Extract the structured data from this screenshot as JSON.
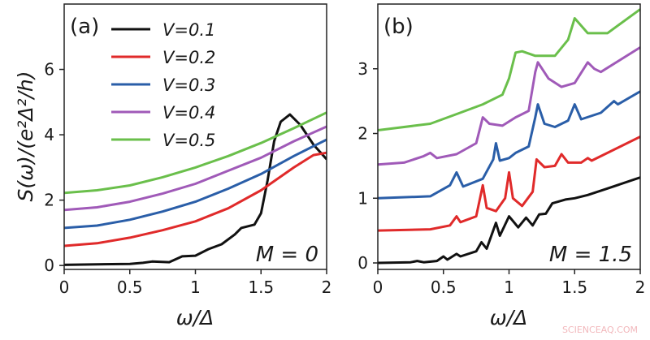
{
  "chart_data": [
    {
      "type": "line",
      "panel_label": "(a)",
      "annotation": "M = 0",
      "xlabel": "ω/Δ",
      "ylabel": "S(ω)/(e²Δ²/h)",
      "xlim": [
        0,
        2
      ],
      "ylim": [
        -0.12,
        8
      ],
      "xticks": [
        "0",
        "0.5",
        "1",
        "1.5",
        "2"
      ],
      "xtick_values": [
        0,
        0.5,
        1,
        1.5,
        2
      ],
      "yticks": [
        "0",
        "2",
        "4",
        "6"
      ],
      "ytick_values": [
        0,
        2,
        4,
        6
      ],
      "grid": false,
      "legend": "top-left",
      "series": [
        {
          "name": "V=0.1",
          "color": "#111111",
          "x": [
            0,
            0.5,
            0.6,
            0.67,
            0.8,
            0.9,
            1.0,
            1.1,
            1.2,
            1.3,
            1.35,
            1.45,
            1.5,
            1.55,
            1.6,
            1.65,
            1.72,
            1.8,
            1.9,
            2.0
          ],
          "y": [
            0.02,
            0.05,
            0.08,
            0.12,
            0.1,
            0.28,
            0.3,
            0.5,
            0.65,
            0.95,
            1.15,
            1.25,
            1.6,
            2.6,
            3.8,
            4.4,
            4.62,
            4.3,
            3.7,
            3.25
          ]
        },
        {
          "name": "V=0.2",
          "color": "#e02a2a",
          "x": [
            0,
            0.25,
            0.5,
            0.75,
            1.0,
            1.25,
            1.5,
            1.75,
            1.9,
            2.0
          ],
          "y": [
            0.6,
            0.68,
            0.85,
            1.08,
            1.35,
            1.75,
            2.3,
            3.0,
            3.38,
            3.45
          ]
        },
        {
          "name": "V=0.3",
          "color": "#2a5ea8",
          "x": [
            0,
            0.25,
            0.5,
            0.75,
            1.0,
            1.25,
            1.5,
            1.75,
            2.0
          ],
          "y": [
            1.15,
            1.22,
            1.4,
            1.65,
            1.95,
            2.35,
            2.8,
            3.35,
            3.85
          ]
        },
        {
          "name": "V=0.4",
          "color": "#a05ab8",
          "x": [
            0,
            0.25,
            0.5,
            0.75,
            1.0,
            1.25,
            1.5,
            1.75,
            2.0
          ],
          "y": [
            1.7,
            1.78,
            1.95,
            2.2,
            2.5,
            2.9,
            3.3,
            3.8,
            4.25
          ]
        },
        {
          "name": "V=0.5",
          "color": "#6abf4b",
          "x": [
            0,
            0.25,
            0.5,
            0.75,
            1.0,
            1.25,
            1.5,
            1.75,
            2.0
          ],
          "y": [
            2.22,
            2.3,
            2.45,
            2.7,
            3.0,
            3.35,
            3.75,
            4.2,
            4.68
          ]
        }
      ]
    },
    {
      "type": "line",
      "panel_label": "(b)",
      "annotation": "M = 1.5",
      "xlabel": "ω/Δ",
      "xlim": [
        0,
        2
      ],
      "ylim": [
        -0.1,
        4
      ],
      "xticks": [
        "0",
        "0.5",
        "1",
        "1.5",
        "2"
      ],
      "xtick_values": [
        0,
        0.5,
        1,
        1.5,
        2
      ],
      "yticks": [
        "0",
        "1",
        "2",
        "3"
      ],
      "ytick_values": [
        0,
        1,
        2,
        3
      ],
      "grid": false,
      "series": [
        {
          "name": "V=0.1",
          "color": "#111111",
          "x": [
            0,
            0.25,
            0.3,
            0.35,
            0.45,
            0.5,
            0.53,
            0.6,
            0.63,
            0.75,
            0.79,
            0.83,
            0.9,
            0.93,
            1.0,
            1.07,
            1.13,
            1.18,
            1.23,
            1.28,
            1.33,
            1.43,
            1.5,
            1.6,
            1.75,
            2.0
          ],
          "y": [
            0,
            0.01,
            0.03,
            0.01,
            0.03,
            0.1,
            0.05,
            0.14,
            0.1,
            0.18,
            0.32,
            0.22,
            0.62,
            0.42,
            0.72,
            0.55,
            0.7,
            0.58,
            0.75,
            0.76,
            0.92,
            0.98,
            1.0,
            1.05,
            1.15,
            1.32
          ]
        },
        {
          "name": "V=0.2",
          "color": "#e02a2a",
          "x": [
            0,
            0.4,
            0.55,
            0.6,
            0.63,
            0.75,
            0.8,
            0.83,
            0.9,
            0.97,
            1.0,
            1.03,
            1.1,
            1.18,
            1.21,
            1.27,
            1.35,
            1.4,
            1.45,
            1.55,
            1.6,
            1.63,
            2.0
          ],
          "y": [
            0.5,
            0.52,
            0.58,
            0.72,
            0.63,
            0.72,
            1.2,
            0.85,
            0.8,
            1.0,
            1.4,
            1.0,
            0.88,
            1.1,
            1.6,
            1.48,
            1.5,
            1.68,
            1.55,
            1.55,
            1.62,
            1.58,
            1.95
          ]
        },
        {
          "name": "V=0.3",
          "color": "#2a5ea8",
          "x": [
            0,
            0.4,
            0.55,
            0.6,
            0.65,
            0.8,
            0.88,
            0.9,
            0.93,
            1.0,
            1.05,
            1.15,
            1.2,
            1.22,
            1.27,
            1.35,
            1.45,
            1.5,
            1.55,
            1.7,
            1.8,
            1.83,
            2.0
          ],
          "y": [
            1.0,
            1.03,
            1.2,
            1.4,
            1.18,
            1.3,
            1.6,
            1.85,
            1.58,
            1.62,
            1.7,
            1.8,
            2.25,
            2.45,
            2.15,
            2.1,
            2.2,
            2.45,
            2.22,
            2.32,
            2.5,
            2.45,
            2.65
          ]
        },
        {
          "name": "V=0.4",
          "color": "#a05ab8",
          "x": [
            0,
            0.2,
            0.35,
            0.4,
            0.45,
            0.6,
            0.75,
            0.8,
            0.85,
            0.95,
            1.05,
            1.15,
            1.2,
            1.22,
            1.3,
            1.4,
            1.5,
            1.6,
            1.65,
            1.7,
            2.0
          ],
          "y": [
            1.52,
            1.55,
            1.65,
            1.7,
            1.62,
            1.68,
            1.85,
            2.25,
            2.15,
            2.12,
            2.25,
            2.35,
            2.95,
            3.1,
            2.85,
            2.72,
            2.78,
            3.1,
            3.0,
            2.95,
            3.33
          ]
        },
        {
          "name": "V=0.5",
          "color": "#6abf4b",
          "x": [
            0,
            0.4,
            0.6,
            0.8,
            0.95,
            1.0,
            1.05,
            1.1,
            1.2,
            1.35,
            1.45,
            1.5,
            1.6,
            1.75,
            2.0
          ],
          "y": [
            2.05,
            2.15,
            2.3,
            2.45,
            2.6,
            2.85,
            3.25,
            3.27,
            3.2,
            3.2,
            3.45,
            3.78,
            3.55,
            3.55,
            3.92
          ]
        }
      ]
    }
  ],
  "watermark": "SCIENCEAQ.COM"
}
